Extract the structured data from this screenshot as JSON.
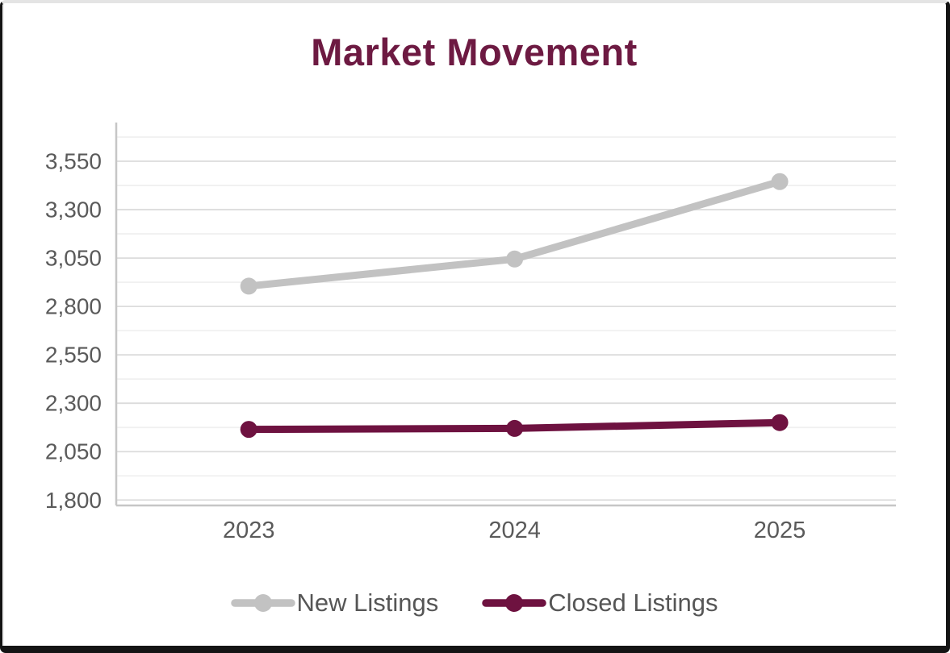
{
  "frame": {
    "background": "#ffffff",
    "border_color": "#141414"
  },
  "chart_data": {
    "type": "line",
    "title": "Market Movement",
    "title_color": "#6d1a42",
    "text_color": "#5a5a5a",
    "grid": true,
    "legend_position": "bottom",
    "categories": [
      "2023",
      "2024",
      "2025"
    ],
    "series": [
      {
        "name": "New Listings",
        "color": "#c2c2c2",
        "values": [
          2905,
          3045,
          3445
        ]
      },
      {
        "name": "Closed Listings",
        "color": "#6e1240",
        "values": [
          2165,
          2170,
          2200
        ]
      }
    ],
    "y_axis": {
      "tick_labels": [
        "3,550",
        "3,300",
        "3,050",
        "2,800",
        "2,550",
        "2,300",
        "2,050",
        "1,800"
      ],
      "tick_values": [
        3550,
        3300,
        3050,
        2800,
        2550,
        2300,
        2050,
        1800
      ],
      "gridline_step": 125,
      "gridline_min": 1800,
      "gridline_max": 3675,
      "axis_min": 1772,
      "axis_max": 3750
    },
    "x_axis": {
      "labels": [
        "2023",
        "2024",
        "2025"
      ]
    },
    "legend": {
      "entries": [
        "New Listings",
        "Closed Listings"
      ]
    }
  }
}
